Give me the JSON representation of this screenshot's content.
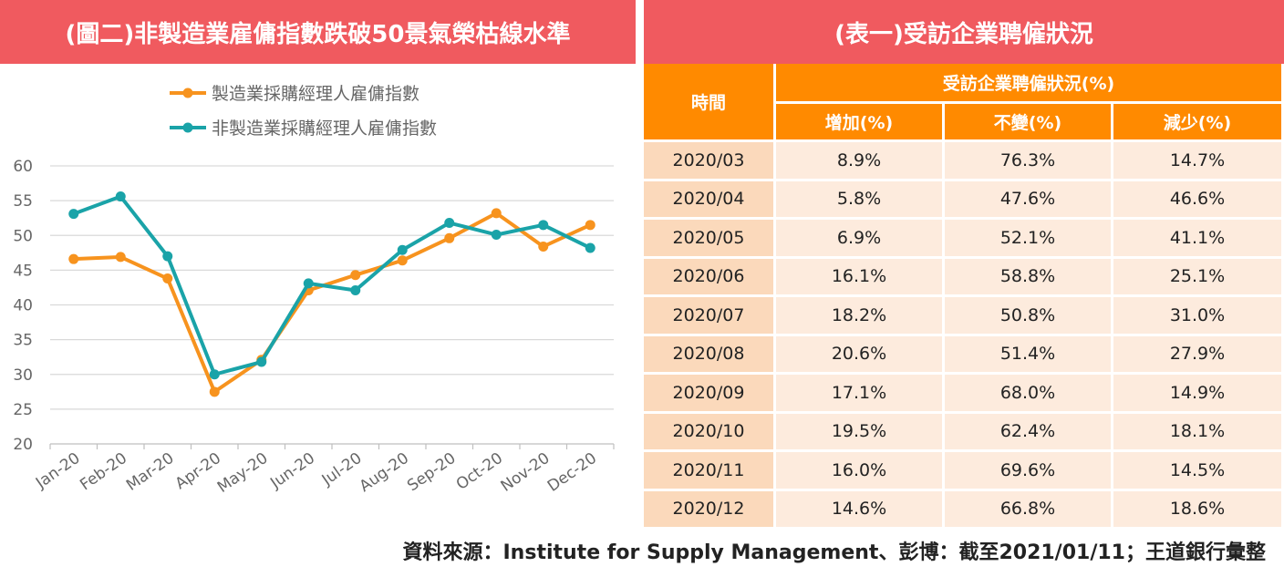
{
  "chart_title": "(圖二)非製造業雇傭指數跌破50景氣榮枯線水準",
  "table_title": "(表一)受訪企業聘僱狀況",
  "chart_data": {
    "type": "line",
    "title": "(圖二)非製造業雇傭指數跌破50景氣榮枯線水準",
    "categories": [
      "Jan-20",
      "Feb-20",
      "Mar-20",
      "Apr-20",
      "May-20",
      "Jun-20",
      "Jul-20",
      "Aug-20",
      "Sep-20",
      "Oct-20",
      "Nov-20",
      "Dec-20"
    ],
    "series": [
      {
        "name": "製造業採購經理人雇傭指數",
        "color": "#f7931e",
        "values": [
          46.6,
          46.9,
          43.8,
          27.5,
          32.1,
          42.1,
          44.3,
          46.4,
          49.6,
          53.2,
          48.4,
          51.5
        ]
      },
      {
        "name": "非製造業採購經理人雇傭指數",
        "color": "#1aa3a8",
        "values": [
          53.1,
          55.6,
          47.0,
          30.0,
          31.8,
          43.1,
          42.1,
          47.9,
          51.8,
          50.1,
          51.5,
          48.2
        ]
      }
    ],
    "yticks": [
      20,
      25,
      30,
      35,
      40,
      45,
      50,
      55,
      60
    ],
    "ylim": [
      20,
      60
    ],
    "grid": true,
    "legend_position": "top-left"
  },
  "table": {
    "header_time": "時間",
    "header_group": "受訪企業聘僱狀況(%)",
    "columns": [
      "增加(%)",
      "不變(%)",
      "減少(%)"
    ],
    "rows": [
      [
        "2020/03",
        "8.9%",
        "76.3%",
        "14.7%"
      ],
      [
        "2020/04",
        "5.8%",
        "47.6%",
        "46.6%"
      ],
      [
        "2020/05",
        "6.9%",
        "52.1%",
        "41.1%"
      ],
      [
        "2020/06",
        "16.1%",
        "58.8%",
        "25.1%"
      ],
      [
        "2020/07",
        "18.2%",
        "50.8%",
        "31.0%"
      ],
      [
        "2020/08",
        "20.6%",
        "51.4%",
        "27.9%"
      ],
      [
        "2020/09",
        "17.1%",
        "68.0%",
        "14.9%"
      ],
      [
        "2020/10",
        "19.5%",
        "62.4%",
        "18.1%"
      ],
      [
        "2020/11",
        "16.0%",
        "69.6%",
        "14.5%"
      ],
      [
        "2020/12",
        "14.6%",
        "66.8%",
        "18.6%"
      ]
    ]
  },
  "source_note": "資料來源：Institute for Supply Management、彭博：截至2021/01/11；王道銀行彙整"
}
